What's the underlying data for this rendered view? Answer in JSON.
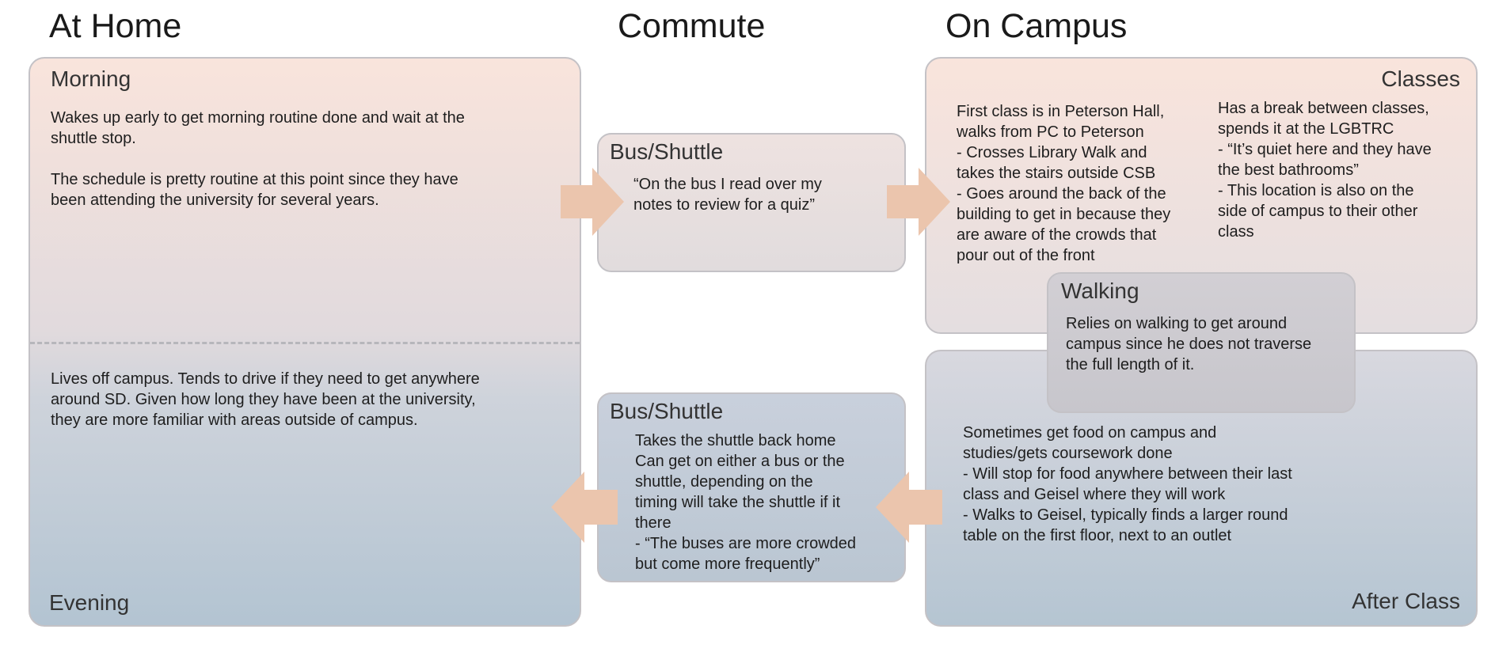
{
  "headers": {
    "at_home": "At Home",
    "commute": "Commute",
    "on_campus": "On Campus"
  },
  "at_home": {
    "morning_title": "Morning",
    "morning_text_1": "Wakes up early to get morning routine done and wait at the\nshuttle stop.",
    "morning_text_2": "The schedule is pretty routine at this point since they have\nbeen attending the university for several years.",
    "evening_text": "Lives off campus. Tends to drive if they need to get anywhere\naround SD. Given how long they have been at the university,\nthey are more familiar with areas outside of campus.",
    "evening_title": "Evening"
  },
  "commute": {
    "top_title": "Bus/Shuttle",
    "top_text": "“On the bus I read over my\nnotes to review for a quiz”",
    "bottom_title": "Bus/Shuttle",
    "bottom_text": "Takes the shuttle back home\nCan get on either a bus or the\nshuttle, depending on the\ntiming will take the shuttle if it\nthere\n- “The buses are more crowded\nbut come more frequently”"
  },
  "on_campus": {
    "classes_title": "Classes",
    "classes_left": "First class is in Peterson Hall,\nwalks from PC to Peterson\n- Crosses Library Walk and\ntakes the stairs outside CSB\n- Goes around the back of the\nbuilding to get in because they\nare aware of the crowds that\npour out of the front",
    "classes_right": "Has a break between classes,\nspends it at the LGBTRC\n- “It’s quiet here and they have\nthe best bathrooms”\n- This location is also on the\nside of campus to their other\nclass",
    "walking_title": "Walking",
    "walking_text": "Relies on walking to get around\ncampus since he does not traverse\nthe full length of it.",
    "after_text": "Sometimes get food on campus and\nstudies/gets coursework done\n- Will stop for food anywhere between their last\nclass and Geisel where they will work\n- Walks to Geisel, typically finds a larger round\ntable on the first floor, next to an outlet",
    "after_title": "After Class"
  },
  "colors": {
    "arrow": "#ebc5ad",
    "warm": "#f9e4dc",
    "cool": "#b5c5d2"
  }
}
